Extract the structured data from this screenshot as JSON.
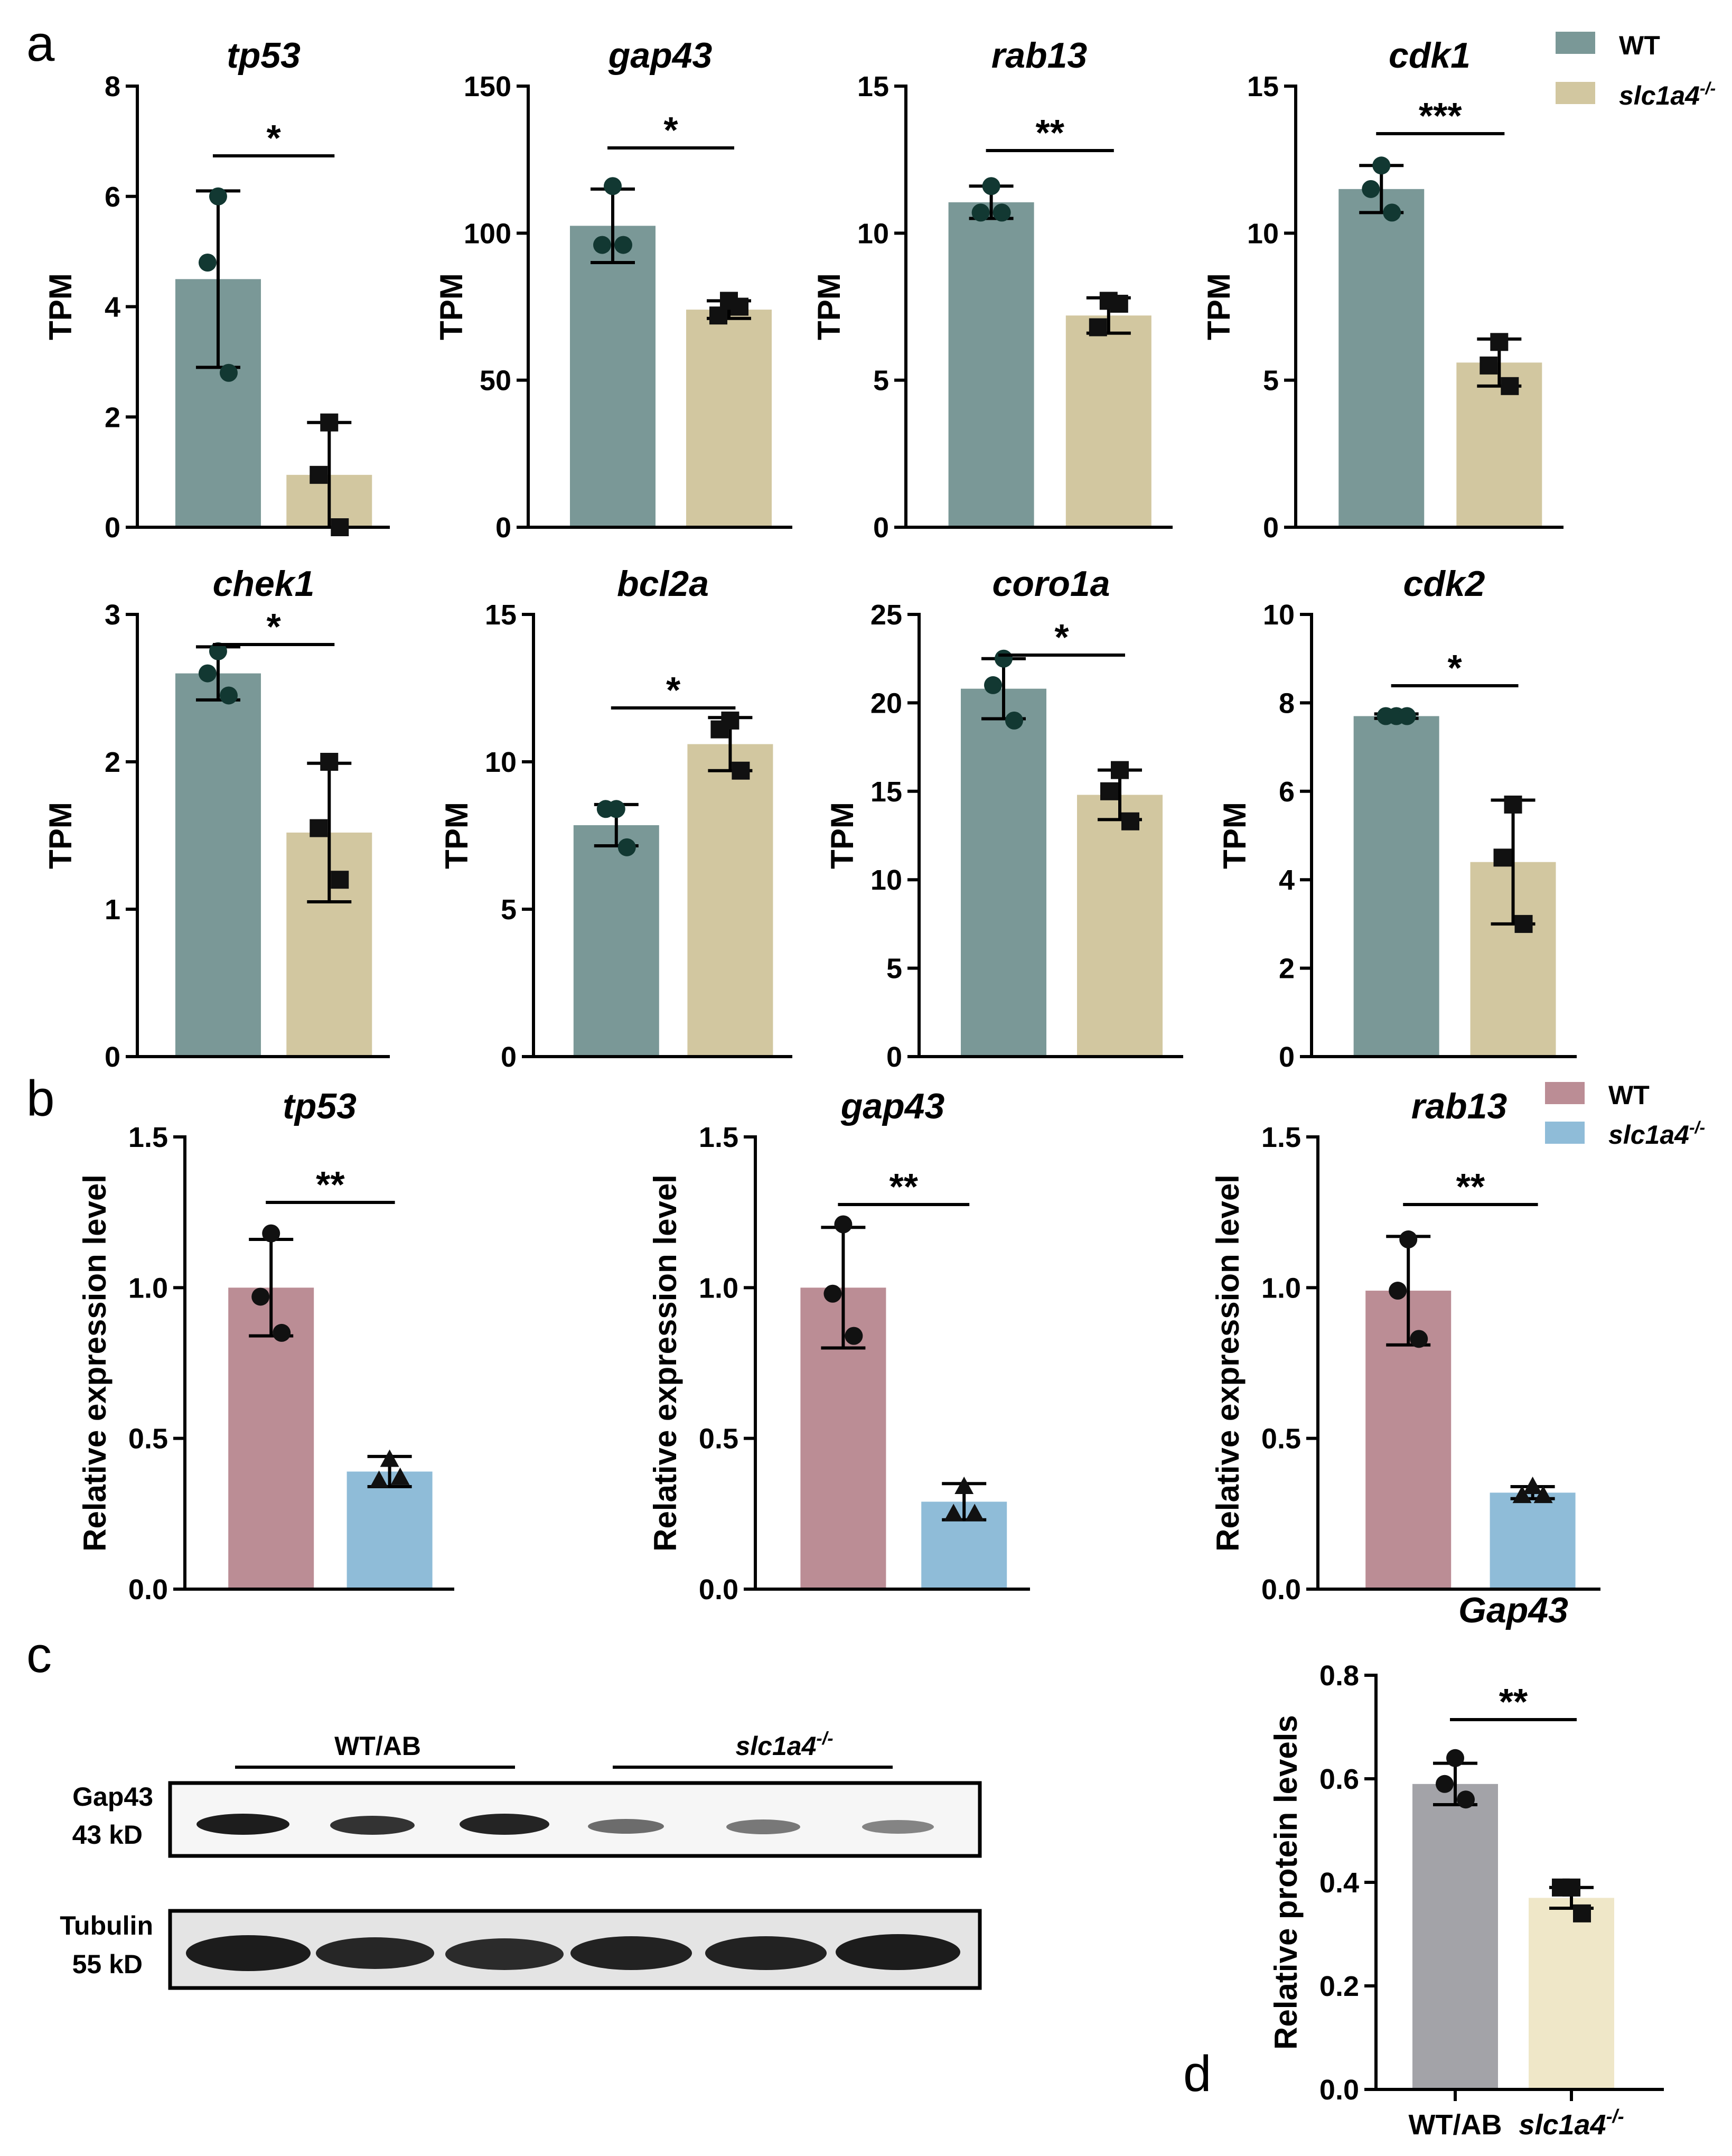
{
  "panel_labels": {
    "a": "a",
    "b": "b",
    "c": "c",
    "d": "d"
  },
  "colors": {
    "a_wt": "#7a9897",
    "a_mut": "#d2c7a0",
    "b_wt": "#bb8d95",
    "b_mut": "#8fbcd8",
    "d_wt": "#a3a3a8",
    "d_mut": "#efe7c8",
    "a_wt_point": "#123832"
  },
  "legend_a": {
    "wt": "WT",
    "mut": "slc1a4",
    "mut_sup": "-/-"
  },
  "legend_b": {
    "wt": "WT",
    "mut": "slc1a4",
    "mut_sup": "-/-"
  },
  "blot": {
    "group1": "WT/AB",
    "group2": "slc1a4",
    "group2_sup": "-/-",
    "row1_name": "Gap43",
    "row1_kd": "43 kD",
    "row2_name": "Tubulin",
    "row2_kd": "55 kD"
  },
  "chart_data": [
    {
      "panel": "a",
      "type": "bar",
      "title": "tp53",
      "ylabel": "TPM",
      "categories": [
        "WT",
        "slc1a4-/-"
      ],
      "ylim": [
        0,
        8
      ],
      "yticks": [
        0,
        2,
        4,
        6,
        8
      ],
      "series": [
        {
          "name": "WT",
          "mean": 4.5,
          "sd": 1.6,
          "points": [
            6.0,
            4.8,
            2.8
          ]
        },
        {
          "name": "slc1a4-/-",
          "mean": 0.95,
          "sd": 0.95,
          "points": [
            1.9,
            0.95,
            0.0
          ]
        }
      ],
      "significance": "*"
    },
    {
      "panel": "a",
      "type": "bar",
      "title": "gap43",
      "ylabel": "TPM",
      "categories": [
        "WT",
        "slc1a4-/-"
      ],
      "ylim": [
        0,
        150
      ],
      "yticks": [
        0,
        50,
        100,
        150
      ],
      "series": [
        {
          "name": "WT",
          "mean": 102.5,
          "sd": 12.5,
          "points": [
            116,
            96,
            96
          ]
        },
        {
          "name": "slc1a4-/-",
          "mean": 74,
          "sd": 3.0,
          "points": [
            77,
            72,
            75
          ]
        }
      ],
      "significance": "*"
    },
    {
      "panel": "a",
      "type": "bar",
      "title": "rab13",
      "ylabel": "TPM",
      "categories": [
        "WT",
        "slc1a4-/-"
      ],
      "ylim": [
        0,
        15
      ],
      "yticks": [
        0,
        5,
        10,
        15
      ],
      "series": [
        {
          "name": "WT",
          "mean": 11.05,
          "sd": 0.55,
          "points": [
            11.6,
            10.7,
            10.7
          ]
        },
        {
          "name": "slc1a4-/-",
          "mean": 7.2,
          "sd": 0.6,
          "points": [
            7.7,
            6.8,
            7.6
          ]
        }
      ],
      "significance": "**"
    },
    {
      "panel": "a",
      "type": "bar",
      "title": "cdk1",
      "ylabel": "TPM",
      "categories": [
        "WT",
        "slc1a4-/-"
      ],
      "ylim": [
        0,
        15
      ],
      "yticks": [
        0,
        5,
        10,
        15
      ],
      "series": [
        {
          "name": "WT",
          "mean": 11.5,
          "sd": 0.8,
          "points": [
            12.3,
            11.5,
            10.7
          ]
        },
        {
          "name": "slc1a4-/-",
          "mean": 5.6,
          "sd": 0.8,
          "points": [
            6.3,
            5.5,
            4.8
          ]
        }
      ],
      "significance": "***"
    },
    {
      "panel": "a",
      "type": "bar",
      "title": "chek1",
      "ylabel": "TPM",
      "categories": [
        "WT",
        "slc1a4-/-"
      ],
      "ylim": [
        0,
        3
      ],
      "yticks": [
        0,
        1,
        2,
        3
      ],
      "series": [
        {
          "name": "WT",
          "mean": 2.6,
          "sd": 0.18,
          "points": [
            2.75,
            2.6,
            2.45
          ]
        },
        {
          "name": "slc1a4-/-",
          "mean": 1.52,
          "sd": 0.47,
          "points": [
            2.0,
            1.55,
            1.2
          ]
        }
      ],
      "significance": "*"
    },
    {
      "panel": "a",
      "type": "bar",
      "title": "bcl2a",
      "ylabel": "TPM",
      "categories": [
        "WT",
        "slc1a4-/-"
      ],
      "ylim": [
        0,
        15
      ],
      "yticks": [
        0,
        5,
        10,
        15
      ],
      "series": [
        {
          "name": "WT",
          "mean": 7.85,
          "sd": 0.7,
          "points": [
            8.4,
            8.4,
            7.1
          ]
        },
        {
          "name": "slc1a4-/-",
          "mean": 10.6,
          "sd": 0.9,
          "points": [
            11.4,
            11.1,
            9.7
          ]
        }
      ],
      "significance": "*"
    },
    {
      "panel": "a",
      "type": "bar",
      "title": "coro1a",
      "ylabel": "TPM",
      "categories": [
        "WT",
        "slc1a4-/-"
      ],
      "ylim": [
        0,
        25
      ],
      "yticks": [
        0,
        5,
        10,
        15,
        20,
        25
      ],
      "series": [
        {
          "name": "WT",
          "mean": 20.8,
          "sd": 1.7,
          "points": [
            22.5,
            21.0,
            19.0
          ]
        },
        {
          "name": "slc1a4-/-",
          "mean": 14.8,
          "sd": 1.4,
          "points": [
            16.2,
            15.0,
            13.3
          ]
        }
      ],
      "significance": "*"
    },
    {
      "panel": "a",
      "type": "bar",
      "title": "cdk2",
      "ylabel": "TPM",
      "categories": [
        "WT",
        "slc1a4-/-"
      ],
      "ylim": [
        0,
        10
      ],
      "yticks": [
        0,
        2,
        4,
        6,
        8,
        10
      ],
      "series": [
        {
          "name": "WT",
          "mean": 7.7,
          "sd": 0.05,
          "points": [
            7.7,
            7.7,
            7.7
          ]
        },
        {
          "name": "slc1a4-/-",
          "mean": 4.4,
          "sd": 1.4,
          "points": [
            5.7,
            4.5,
            3.0
          ]
        }
      ],
      "significance": "*"
    },
    {
      "panel": "b",
      "type": "bar",
      "title": "tp53",
      "ylabel": "Relative expression level",
      "categories": [
        "WT",
        "slc1a4-/-"
      ],
      "ylim": [
        0,
        1.5
      ],
      "yticks": [
        0.0,
        0.5,
        1.0,
        1.5
      ],
      "series": [
        {
          "name": "WT",
          "mean": 1.0,
          "sd": 0.16,
          "points": [
            1.18,
            0.97,
            0.85
          ]
        },
        {
          "name": "slc1a4-/-",
          "mean": 0.39,
          "sd": 0.05,
          "points": [
            0.43,
            0.36,
            0.37
          ]
        }
      ],
      "significance": "**"
    },
    {
      "panel": "b",
      "type": "bar",
      "title": "gap43",
      "ylabel": "Relative expression level",
      "categories": [
        "WT",
        "slc1a4-/-"
      ],
      "ylim": [
        0,
        1.5
      ],
      "yticks": [
        0.0,
        0.5,
        1.0,
        1.5
      ],
      "series": [
        {
          "name": "WT",
          "mean": 1.0,
          "sd": 0.2,
          "points": [
            1.21,
            0.98,
            0.84
          ]
        },
        {
          "name": "slc1a4-/-",
          "mean": 0.29,
          "sd": 0.06,
          "points": [
            0.34,
            0.25,
            0.25
          ]
        }
      ],
      "significance": "**"
    },
    {
      "panel": "b",
      "type": "bar",
      "title": "rab13",
      "ylabel": "Relative expression level",
      "categories": [
        "WT",
        "slc1a4-/-"
      ],
      "ylim": [
        0,
        1.5
      ],
      "yticks": [
        0.0,
        0.5,
        1.0,
        1.5
      ],
      "series": [
        {
          "name": "WT",
          "mean": 0.99,
          "sd": 0.18,
          "points": [
            1.16,
            0.99,
            0.83
          ]
        },
        {
          "name": "slc1a4-/-",
          "mean": 0.32,
          "sd": 0.02,
          "points": [
            0.34,
            0.31,
            0.31
          ]
        }
      ],
      "significance": "**"
    },
    {
      "panel": "d",
      "type": "bar",
      "title": "Gap43",
      "ylabel": "Relative  protein levels",
      "categories": [
        "WT/AB",
        "slc1a4"
      ],
      "category_sup": [
        "",
        "-/-"
      ],
      "ylim": [
        0,
        0.8
      ],
      "yticks": [
        0.0,
        0.2,
        0.4,
        0.6,
        0.8
      ],
      "series": [
        {
          "name": "WT/AB",
          "mean": 0.59,
          "sd": 0.04,
          "points": [
            0.64,
            0.59,
            0.56
          ]
        },
        {
          "name": "slc1a4-/-",
          "mean": 0.37,
          "sd": 0.02,
          "points": [
            0.39,
            0.39,
            0.34
          ]
        }
      ],
      "significance": "**"
    }
  ]
}
